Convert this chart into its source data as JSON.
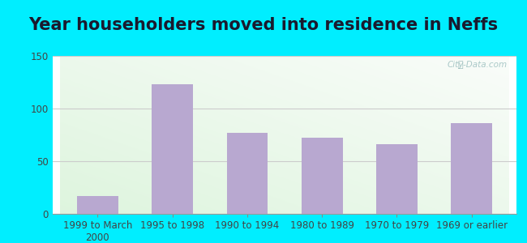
{
  "title": "Year householders moved into residence in Neffs",
  "categories": [
    "1999 to March\n2000",
    "1995 to 1998",
    "1990 to 1994",
    "1980 to 1989",
    "1970 to 1979",
    "1969 or earlier"
  ],
  "values": [
    17,
    123,
    77,
    72,
    66,
    86
  ],
  "bar_color": "#b8a8d0",
  "ylim": [
    0,
    150
  ],
  "yticks": [
    0,
    50,
    100,
    150
  ],
  "background_outer": "#00eeff",
  "background_inner_colors": [
    "#e8f5e2",
    "#f5faf5",
    "#f8faf5",
    "#fafafa"
  ],
  "grid_color": "#cccccc",
  "title_fontsize": 15,
  "tick_fontsize": 8.5,
  "watermark": "City-Data.com"
}
